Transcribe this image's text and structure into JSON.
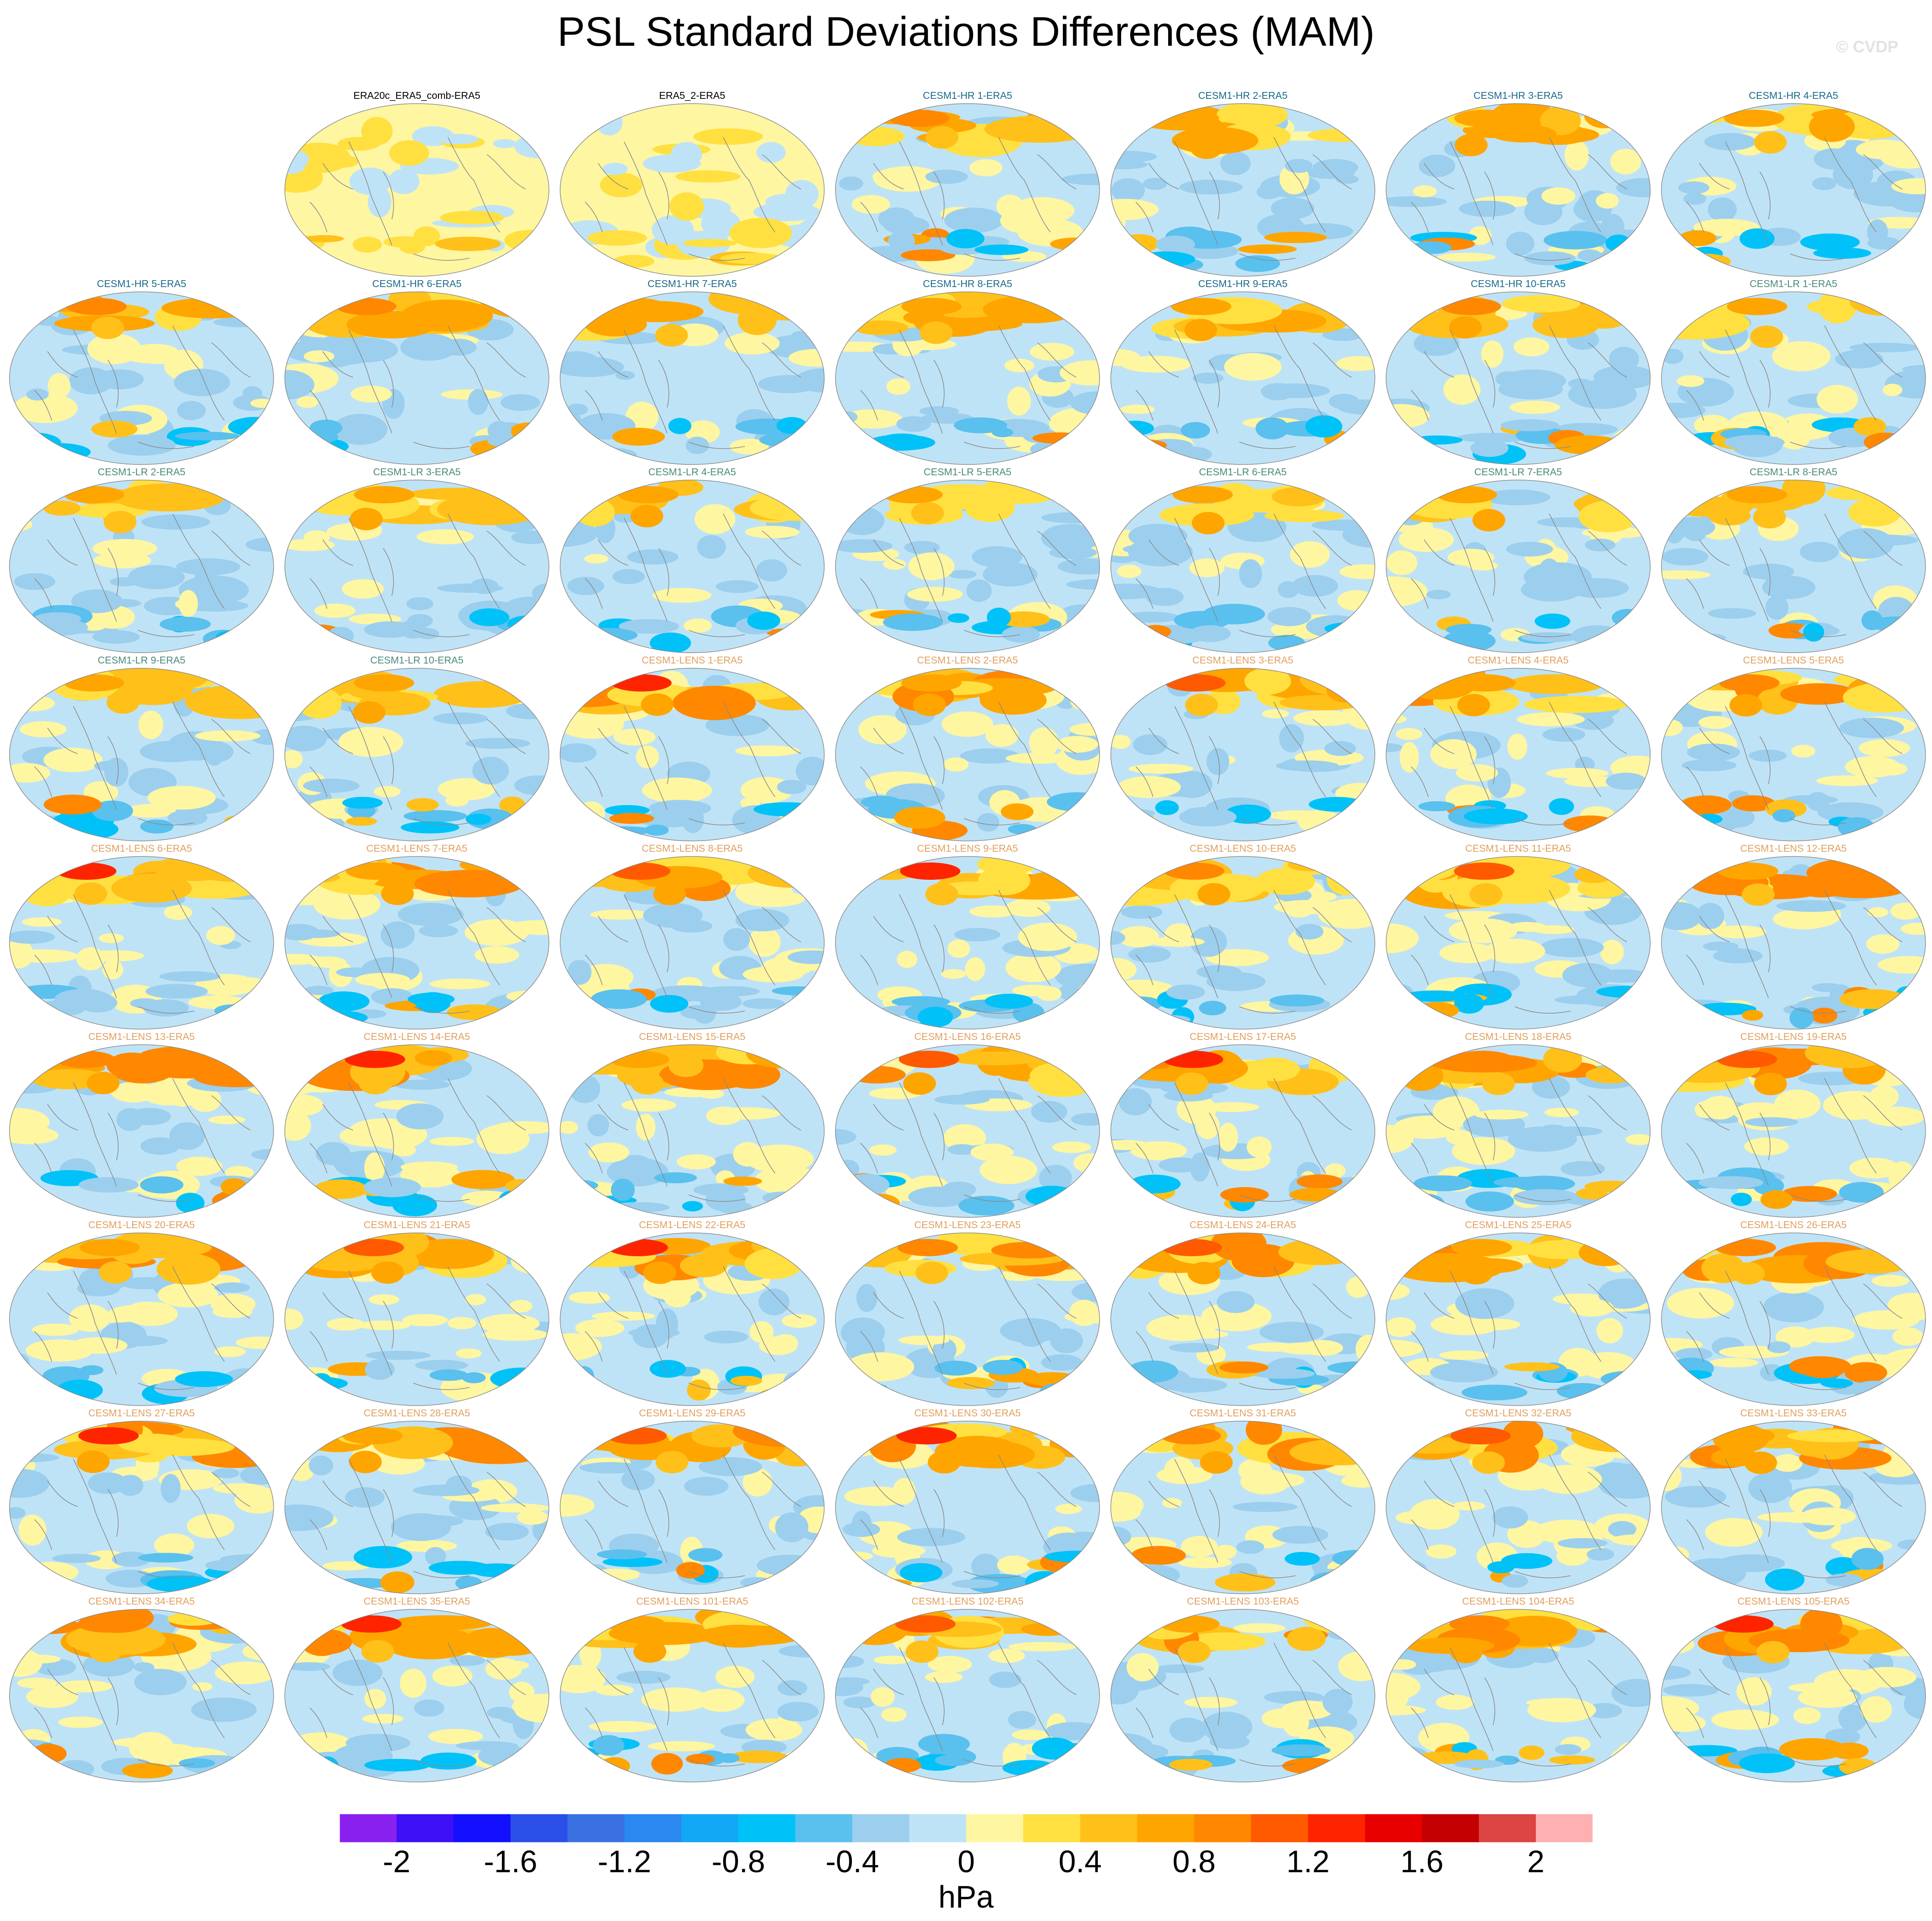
{
  "title": "PSL Standard Deviations Differences (MAM)",
  "credit": "© CVDP",
  "units": "hPa",
  "colorbar": {
    "labels": [
      "-2",
      "-1.6",
      "-1.2",
      "-0.8",
      "-0.4",
      "0",
      "0.4",
      "0.8",
      "1.2",
      "1.6",
      "2"
    ],
    "label_values": [
      -2,
      -1.6,
      -1.2,
      -0.8,
      -0.4,
      0,
      0.4,
      0.8,
      1.2,
      1.6,
      2
    ],
    "colors": [
      "#8a20f0",
      "#3d10f5",
      "#1210ff",
      "#2a4fe8",
      "#3b70e3",
      "#2a88f0",
      "#12a8f5",
      "#00c2f8",
      "#5ac0ee",
      "#9ccfee",
      "#bfe3f6",
      "#fff6a2",
      "#ffe040",
      "#ffc01a",
      "#ffa500",
      "#ff8800",
      "#ff5a00",
      "#ff2400",
      "#e80000",
      "#c40000",
      "#dd4444",
      "#ffb0b0"
    ]
  },
  "panel_title_colors": {
    "obs": "#000000",
    "cesm1-hr": "#1a6a8a",
    "cesm1-lr": "#4a8a7a",
    "cesm1-lens": "#e0a060"
  },
  "panels": [
    {
      "title": "ERA20c_ERA5_comb-ERA5",
      "group": "obs"
    },
    {
      "title": "ERA5_2-ERA5",
      "group": "obs"
    },
    {
      "title": "CESM1-HR 1-ERA5",
      "group": "cesm1-hr"
    },
    {
      "title": "CESM1-HR 2-ERA5",
      "group": "cesm1-hr"
    },
    {
      "title": "CESM1-HR 3-ERA5",
      "group": "cesm1-hr"
    },
    {
      "title": "CESM1-HR 4-ERA5",
      "group": "cesm1-hr"
    },
    {
      "title": "CESM1-HR 5-ERA5",
      "group": "cesm1-hr"
    },
    {
      "title": "CESM1-HR 6-ERA5",
      "group": "cesm1-hr"
    },
    {
      "title": "CESM1-HR 7-ERA5",
      "group": "cesm1-hr"
    },
    {
      "title": "CESM1-HR 8-ERA5",
      "group": "cesm1-hr"
    },
    {
      "title": "CESM1-HR 9-ERA5",
      "group": "cesm1-hr"
    },
    {
      "title": "CESM1-HR 10-ERA5",
      "group": "cesm1-hr"
    },
    {
      "title": "CESM1-LR 1-ERA5",
      "group": "cesm1-lr"
    },
    {
      "title": "CESM1-LR 2-ERA5",
      "group": "cesm1-lr"
    },
    {
      "title": "CESM1-LR 3-ERA5",
      "group": "cesm1-lr"
    },
    {
      "title": "CESM1-LR 4-ERA5",
      "group": "cesm1-lr"
    },
    {
      "title": "CESM1-LR 5-ERA5",
      "group": "cesm1-lr"
    },
    {
      "title": "CESM1-LR 6-ERA5",
      "group": "cesm1-lr"
    },
    {
      "title": "CESM1-LR 7-ERA5",
      "group": "cesm1-lr"
    },
    {
      "title": "CESM1-LR 8-ERA5",
      "group": "cesm1-lr"
    },
    {
      "title": "CESM1-LR 9-ERA5",
      "group": "cesm1-lr"
    },
    {
      "title": "CESM1-LR 10-ERA5",
      "group": "cesm1-lr"
    },
    {
      "title": "CESM1-LENS 1-ERA5",
      "group": "cesm1-lens"
    },
    {
      "title": "CESM1-LENS 2-ERA5",
      "group": "cesm1-lens"
    },
    {
      "title": "CESM1-LENS 3-ERA5",
      "group": "cesm1-lens"
    },
    {
      "title": "CESM1-LENS 4-ERA5",
      "group": "cesm1-lens"
    },
    {
      "title": "CESM1-LENS 5-ERA5",
      "group": "cesm1-lens"
    },
    {
      "title": "CESM1-LENS 6-ERA5",
      "group": "cesm1-lens"
    },
    {
      "title": "CESM1-LENS 7-ERA5",
      "group": "cesm1-lens"
    },
    {
      "title": "CESM1-LENS 8-ERA5",
      "group": "cesm1-lens"
    },
    {
      "title": "CESM1-LENS 9-ERA5",
      "group": "cesm1-lens"
    },
    {
      "title": "CESM1-LENS 10-ERA5",
      "group": "cesm1-lens"
    },
    {
      "title": "CESM1-LENS 11-ERA5",
      "group": "cesm1-lens"
    },
    {
      "title": "CESM1-LENS 12-ERA5",
      "group": "cesm1-lens"
    },
    {
      "title": "CESM1-LENS 13-ERA5",
      "group": "cesm1-lens"
    },
    {
      "title": "CESM1-LENS 14-ERA5",
      "group": "cesm1-lens"
    },
    {
      "title": "CESM1-LENS 15-ERA5",
      "group": "cesm1-lens"
    },
    {
      "title": "CESM1-LENS 16-ERA5",
      "group": "cesm1-lens"
    },
    {
      "title": "CESM1-LENS 17-ERA5",
      "group": "cesm1-lens"
    },
    {
      "title": "CESM1-LENS 18-ERA5",
      "group": "cesm1-lens"
    },
    {
      "title": "CESM1-LENS 19-ERA5",
      "group": "cesm1-lens"
    },
    {
      "title": "CESM1-LENS 20-ERA5",
      "group": "cesm1-lens"
    },
    {
      "title": "CESM1-LENS 21-ERA5",
      "group": "cesm1-lens"
    },
    {
      "title": "CESM1-LENS 22-ERA5",
      "group": "cesm1-lens"
    },
    {
      "title": "CESM1-LENS 23-ERA5",
      "group": "cesm1-lens"
    },
    {
      "title": "CESM1-LENS 24-ERA5",
      "group": "cesm1-lens"
    },
    {
      "title": "CESM1-LENS 25-ERA5",
      "group": "cesm1-lens"
    },
    {
      "title": "CESM1-LENS 26-ERA5",
      "group": "cesm1-lens"
    },
    {
      "title": "CESM1-LENS 27-ERA5",
      "group": "cesm1-lens"
    },
    {
      "title": "CESM1-LENS 28-ERA5",
      "group": "cesm1-lens"
    },
    {
      "title": "CESM1-LENS 29-ERA5",
      "group": "cesm1-lens"
    },
    {
      "title": "CESM1-LENS 30-ERA5",
      "group": "cesm1-lens"
    },
    {
      "title": "CESM1-LENS 31-ERA5",
      "group": "cesm1-lens"
    },
    {
      "title": "CESM1-LENS 32-ERA5",
      "group": "cesm1-lens"
    },
    {
      "title": "CESM1-LENS 33-ERA5",
      "group": "cesm1-lens"
    },
    {
      "title": "CESM1-LENS 34-ERA5",
      "group": "cesm1-lens"
    },
    {
      "title": "CESM1-LENS 35-ERA5",
      "group": "cesm1-lens"
    },
    {
      "title": "CESM1-LENS 101-ERA5",
      "group": "cesm1-lens"
    },
    {
      "title": "CESM1-LENS 102-ERA5",
      "group": "cesm1-lens"
    },
    {
      "title": "CESM1-LENS 103-ERA5",
      "group": "cesm1-lens"
    },
    {
      "title": "CESM1-LENS 104-ERA5",
      "group": "cesm1-lens"
    },
    {
      "title": "CESM1-LENS 105-ERA5",
      "group": "cesm1-lens"
    }
  ]
}
